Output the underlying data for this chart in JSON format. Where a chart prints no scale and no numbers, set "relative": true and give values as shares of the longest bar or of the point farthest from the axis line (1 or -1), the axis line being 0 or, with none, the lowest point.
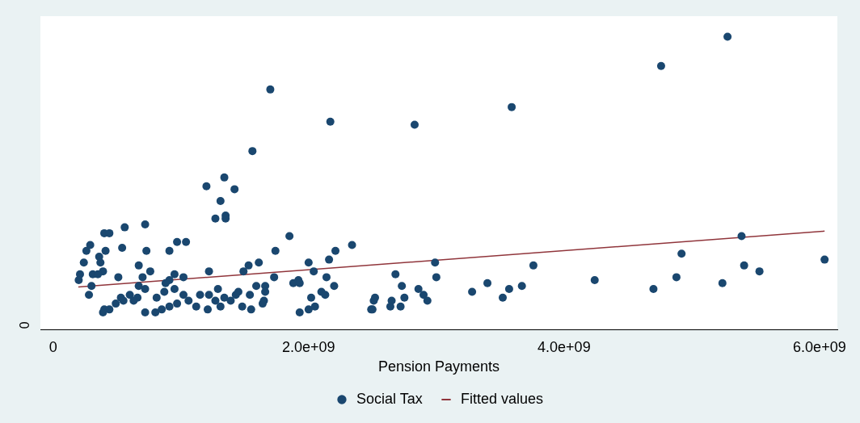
{
  "chart_data": {
    "type": "scatter",
    "relative": true,
    "xlabel": "Pension Payments",
    "xlim": [
      -100000000.0,
      6140000000.0
    ],
    "xticks": [
      0,
      {
        "value": 2000000000,
        "label": "2.0e+09"
      },
      {
        "value": 4000000000,
        "label": "4.0e+09"
      },
      {
        "value": 6000000000,
        "label": "6.0e+09"
      }
    ],
    "legend": "bottom",
    "marker": "circle",
    "annotations": [
      "0"
    ],
    "series": [
      {
        "name": "Social Tax",
        "type": "scatter",
        "color": "#1a476f",
        "x": [
          1700000000.0,
          2170000000.0,
          1560000000.0,
          1340000000.0,
          1200000000.0,
          1420000000.0,
          1310000000.0,
          1270000000.0,
          1350000000.0,
          1350000000.0,
          560000000.0,
          720000000.0,
          400000000.0,
          440000000.0,
          1850000000.0,
          290000000.0,
          970000000.0,
          1040000000.0,
          2340000000.0,
          260000000.0,
          410000000.0,
          540000000.0,
          730000000.0,
          910000000.0,
          1740000000.0,
          2210000000.0,
          2160000000.0,
          360000000.0,
          240000000.0,
          370000000.0,
          670000000.0,
          1610000000.0,
          1530000000.0,
          2000000000.0,
          1220000000.0,
          1490000000.0,
          2040000000.0,
          210000000.0,
          310000000.0,
          390000000.0,
          350000000.0,
          510000000.0,
          760000000.0,
          950000000.0,
          700000000.0,
          1020000000.0,
          1730000000.0,
          200000000.0,
          300000000.0,
          910000000.0,
          2140000000.0,
          1920000000.0,
          670000000.0,
          720000000.0,
          880000000.0,
          950000000.0,
          1290000000.0,
          1590000000.0,
          1660000000.0,
          1880000000.0,
          1930000000.0,
          2200000000.0,
          280000000.0,
          530000000.0,
          600000000.0,
          660000000.0,
          810000000.0,
          870000000.0,
          1020000000.0,
          1150000000.0,
          1220000000.0,
          1340000000.0,
          1430000000.0,
          1450000000.0,
          1540000000.0,
          1660000000.0,
          1650000000.0,
          2100000000.0,
          2130000000.0,
          2020000000.0,
          490000000.0,
          550000000.0,
          630000000.0,
          440000000.0,
          400000000.0,
          390000000.0,
          720000000.0,
          800000000.0,
          850000000.0,
          910000000.0,
          970000000.0,
          1060000000.0,
          1120000000.0,
          1210000000.0,
          1270000000.0,
          1310000000.0,
          1390000000.0,
          1480000000.0,
          1550000000.0,
          1640000000.0,
          1930000000.0,
          2000000000.0,
          2050000000.0,
          2490000000.0,
          2510000000.0,
          2830000000.0,
          3590000000.0,
          4760000000.0,
          5280000000.0,
          5390000000.0,
          4920000000.0,
          6040000000.0,
          2990000000.0,
          3760000000.0,
          5410000000.0,
          5530000000.0,
          2680000000.0,
          3000000000.0,
          4880000000.0,
          4240000000.0,
          3400000000.0,
          5240000000.0,
          2730000000.0,
          3570000000.0,
          3670000000.0,
          2860000000.0,
          4700000000.0,
          3280000000.0,
          2900000000.0,
          3520000000.0,
          2520000000.0,
          2650000000.0,
          2750000000.0,
          2930000000.0,
          2640000000.0,
          2720000000.0,
          2500000000.0
        ],
        "values": [
          0.82,
          0.71,
          0.61,
          0.52,
          0.49,
          0.48,
          0.44,
          0.38,
          0.39,
          0.38,
          0.35,
          0.36,
          0.33,
          0.33,
          0.32,
          0.29,
          0.3,
          0.3,
          0.29,
          0.27,
          0.27,
          0.28,
          0.27,
          0.27,
          0.27,
          0.27,
          0.24,
          0.25,
          0.23,
          0.23,
          0.22,
          0.23,
          0.22,
          0.23,
          0.2,
          0.2,
          0.2,
          0.19,
          0.19,
          0.2,
          0.19,
          0.18,
          0.2,
          0.19,
          0.18,
          0.18,
          0.18,
          0.17,
          0.15,
          0.17,
          0.18,
          0.17,
          0.15,
          0.14,
          0.16,
          0.14,
          0.14,
          0.15,
          0.15,
          0.16,
          0.16,
          0.15,
          0.12,
          0.11,
          0.12,
          0.11,
          0.11,
          0.13,
          0.12,
          0.12,
          0.12,
          0.11,
          0.12,
          0.13,
          0.12,
          0.13,
          0.1,
          0.13,
          0.12,
          0.11,
          0.09,
          0.1,
          0.1,
          0.07,
          0.07,
          0.06,
          0.06,
          0.06,
          0.07,
          0.08,
          0.09,
          0.1,
          0.08,
          0.07,
          0.1,
          0.08,
          0.1,
          0.08,
          0.07,
          0.09,
          0.06,
          0.07,
          0.08,
          0.07,
          0.1,
          0.7,
          0.76,
          0.9,
          1.0,
          0.32,
          0.26,
          0.24,
          0.23,
          0.22,
          0.22,
          0.2,
          0.19,
          0.18,
          0.18,
          0.17,
          0.16,
          0.16,
          0.15,
          0.14,
          0.15,
          0.14,
          0.14,
          0.13,
          0.12,
          0.11,
          0.11,
          0.1,
          0.11,
          0.1,
          0.08,
          0.08,
          0.07
        ]
      },
      {
        "name": "Fitted values",
        "type": "line",
        "color": "#90353b",
        "marker": "none",
        "line_style": "solid",
        "x": [
          197000000.0,
          6040000000.0
        ],
        "values": [
          0.147,
          0.337
        ]
      }
    ]
  }
}
